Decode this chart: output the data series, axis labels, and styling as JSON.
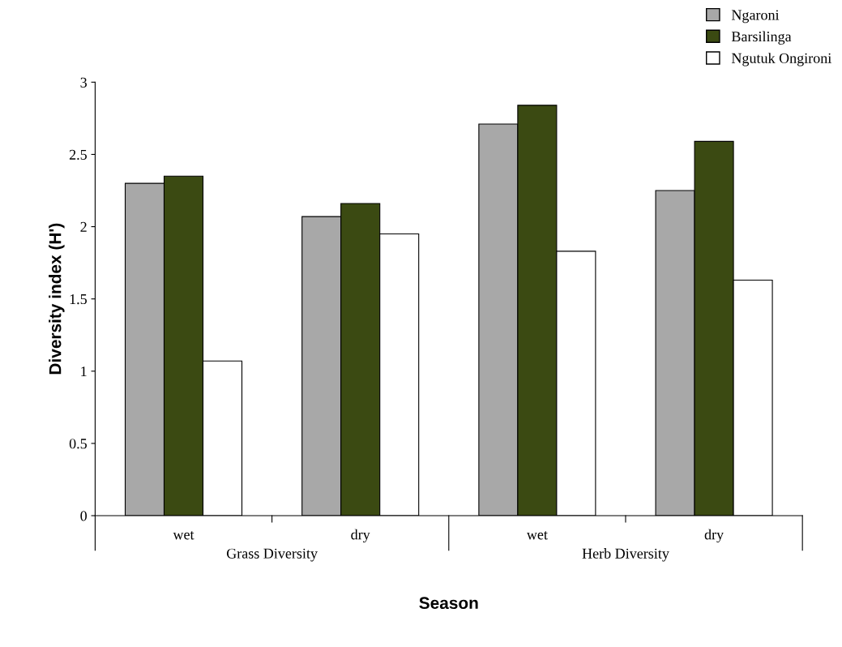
{
  "chart_data": {
    "type": "bar",
    "xlabel": "Season",
    "ylabel": "Diversity index (H')",
    "categories": [
      "wet",
      "dry",
      "wet",
      "dry"
    ],
    "annotations": [
      "Grass Diversity",
      "Herb Diversity"
    ],
    "series": [
      {
        "name": "Ngaroni",
        "color": "#a8a8a8",
        "values": [
          2.3,
          2.07,
          2.71,
          2.25
        ]
      },
      {
        "name": "Barsilinga",
        "color": "#3b4a12",
        "values": [
          2.35,
          2.16,
          2.84,
          2.59
        ]
      },
      {
        "name": "Ngutuk Ongironi",
        "color": "#ffffff",
        "values": [
          1.07,
          1.95,
          1.83,
          1.63
        ]
      }
    ],
    "ylim": [
      0,
      3
    ],
    "yticks": [
      0,
      0.5,
      1,
      1.5,
      2,
      2.5,
      3
    ],
    "grid": false,
    "legend": "top right"
  }
}
